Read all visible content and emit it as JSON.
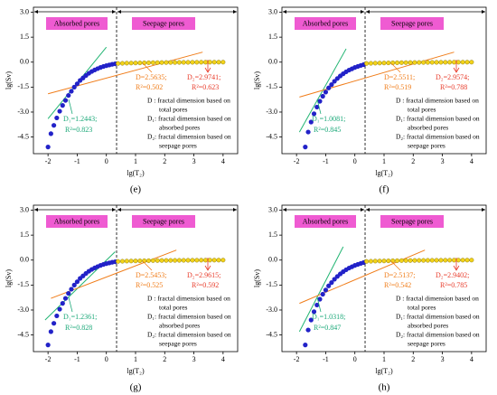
{
  "chart_data": [
    {
      "type": "scatter",
      "label": "(e)",
      "xlabel": "lg(T₂)",
      "ylabel": "lg(Sv)",
      "xlim": [
        -2.5,
        4.5
      ],
      "ylim": [
        -5.5,
        3.3
      ],
      "xticks": [
        -2,
        -1,
        0,
        1,
        2,
        3,
        4
      ],
      "yticks": [
        {
          "value": 3,
          "label": "3.0"
        },
        {
          "value": 1.5,
          "label": "1.5"
        },
        {
          "value": 0,
          "label": "0.0"
        },
        -1.5,
        {
          "value": -3,
          "label": "-3.0"
        },
        -4.5
      ],
      "regions": [
        "Absorbed pores",
        "Seepage pores"
      ],
      "divider": 0.35,
      "series": [
        {
          "color": "#2222c8",
          "x": [
            -2.0,
            -1.9,
            -1.8,
            -1.7,
            -1.6,
            -1.5,
            -1.4,
            -1.3,
            -1.2,
            -1.1,
            -1.0,
            -0.9,
            -0.8,
            -0.7,
            -0.6,
            -0.5,
            -0.4,
            -0.3,
            -0.2,
            -0.1,
            0.0,
            0.1,
            0.2,
            0.3
          ],
          "values": [
            -5.1,
            -4.3,
            -3.8,
            -3.35,
            -2.95,
            -2.6,
            -2.3,
            -2.0,
            -1.75,
            -1.5,
            -1.3,
            -1.1,
            -0.95,
            -0.8,
            -0.67,
            -0.56,
            -0.47,
            -0.39,
            -0.32,
            -0.26,
            -0.21,
            -0.17,
            -0.13,
            -0.1
          ]
        },
        {
          "color": "#f2d21a",
          "x": [
            0.4,
            0.55,
            0.7,
            0.85,
            1.0,
            1.15,
            1.3,
            1.45,
            1.6,
            1.75,
            1.9,
            2.05,
            2.2,
            2.35,
            2.5,
            2.65,
            2.8,
            2.95,
            3.1,
            3.25,
            3.4,
            3.55,
            3.7,
            3.85,
            4.0
          ],
          "values": [
            -0.08,
            -0.07,
            -0.06,
            -0.055,
            -0.05,
            -0.045,
            -0.04,
            -0.035,
            -0.03,
            -0.028,
            -0.025,
            -0.022,
            -0.02,
            -0.018,
            -0.015,
            -0.013,
            -0.011,
            -0.009,
            -0.007,
            -0.005,
            -0.004,
            -0.003,
            -0.002,
            -0.001,
            0
          ]
        }
      ],
      "fits": [
        {
          "color": "#22b573",
          "x": [
            -2.0,
            0.0
          ],
          "values": [
            -3.4,
            0.9
          ]
        },
        {
          "color": "#f07d1a",
          "x": [
            -2.0,
            3.3
          ],
          "values": [
            -1.9,
            0.6
          ]
        }
      ],
      "annotations": [
        "D=2.5635;",
        "R²=0.502",
        "D₂=2.9741;",
        "R²=0.623",
        "D₁=1.2443;",
        "R²=0.823"
      ],
      "definitions": [
        "D : fractal dimension based on",
        "total pores",
        "D₁: fractal dimension based on",
        "absorbed pores",
        "D₂: fractal dimension based on",
        "seepage pores"
      ]
    },
    {
      "type": "scatter",
      "label": "(f)",
      "xlabel": "lg(T₂)",
      "ylabel": "lg(Sv)",
      "xlim": [
        -2.5,
        4.5
      ],
      "ylim": [
        -5.5,
        3.3
      ],
      "xticks": [
        -2,
        -1,
        0,
        1,
        2,
        3,
        4
      ],
      "yticks": [
        {
          "value": 3,
          "label": "3.0"
        },
        {
          "value": 1.5,
          "label": "1.5"
        },
        {
          "value": 0,
          "label": "0.0"
        },
        -1.5,
        {
          "value": -3,
          "label": "-3.0"
        },
        -4.5
      ],
      "regions": [
        "Absorbed pores",
        "Seepage pores"
      ],
      "divider": 0.35,
      "series": [
        {
          "color": "#2222c8",
          "x": [
            -1.7,
            -1.6,
            -1.5,
            -1.4,
            -1.3,
            -1.2,
            -1.1,
            -1.0,
            -0.9,
            -0.8,
            -0.7,
            -0.6,
            -0.5,
            -0.4,
            -0.3,
            -0.2,
            -0.1,
            0.0,
            0.1,
            0.2,
            0.3
          ],
          "values": [
            -5.1,
            -4.2,
            -3.6,
            -3.1,
            -2.7,
            -2.35,
            -2.05,
            -1.8,
            -1.55,
            -1.35,
            -1.15,
            -0.98,
            -0.83,
            -0.7,
            -0.58,
            -0.48,
            -0.4,
            -0.32,
            -0.26,
            -0.2,
            -0.15
          ]
        },
        {
          "color": "#f2d21a",
          "x": [
            0.4,
            0.55,
            0.7,
            0.85,
            1.0,
            1.15,
            1.3,
            1.45,
            1.6,
            1.75,
            1.9,
            2.05,
            2.2,
            2.35,
            2.5,
            2.65,
            2.8,
            2.95,
            3.1,
            3.25,
            3.4,
            3.55,
            3.7,
            3.85,
            4.0
          ],
          "values": [
            -0.08,
            -0.07,
            -0.06,
            -0.055,
            -0.05,
            -0.045,
            -0.04,
            -0.035,
            -0.03,
            -0.028,
            -0.025,
            -0.022,
            -0.02,
            -0.018,
            -0.015,
            -0.013,
            -0.011,
            -0.009,
            -0.007,
            -0.005,
            -0.004,
            -0.003,
            -0.002,
            -0.001,
            0
          ]
        }
      ],
      "fits": [
        {
          "color": "#22b573",
          "x": [
            -1.9,
            -0.3
          ],
          "values": [
            -4.2,
            0.8
          ]
        },
        {
          "color": "#f07d1a",
          "x": [
            -1.9,
            3.4
          ],
          "values": [
            -2.1,
            0.6
          ]
        }
      ],
      "annotations": [
        "D=2.5511;",
        "R²=0.519",
        "D₂=2.9574;",
        "R²=0.788",
        "D₁=1.0081;",
        "R²=0.845"
      ],
      "definitions": [
        "D : fractal dimension based on",
        "total pores",
        "D₁: fractal dimension based on",
        "absorbed pores",
        "D₂: fractal dimension based on",
        "seepage pores"
      ]
    },
    {
      "type": "scatter",
      "label": "(g)",
      "xlabel": "lg(T₂)",
      "ylabel": "lg(Sv)",
      "xlim": [
        -2.5,
        4.5
      ],
      "ylim": [
        -5.5,
        3.3
      ],
      "xticks": [
        -2,
        -1,
        0,
        1,
        2,
        3,
        4
      ],
      "yticks": [
        {
          "value": 3,
          "label": "3.0"
        },
        {
          "value": 1.5,
          "label": "1.5"
        },
        {
          "value": 0,
          "label": "0.0"
        },
        -1.5,
        {
          "value": -3,
          "label": "-3.0"
        },
        -4.5
      ],
      "regions": [
        "Absorbed pores",
        "Seepage pores"
      ],
      "divider": 0.35,
      "series": [
        {
          "color": "#2222c8",
          "x": [
            -2.0,
            -1.9,
            -1.8,
            -1.7,
            -1.6,
            -1.5,
            -1.4,
            -1.3,
            -1.2,
            -1.1,
            -1.0,
            -0.9,
            -0.8,
            -0.7,
            -0.6,
            -0.5,
            -0.4,
            -0.3,
            -0.2,
            -0.1,
            0.0,
            0.1,
            0.2,
            0.3
          ],
          "values": [
            -5.1,
            -4.3,
            -3.8,
            -3.35,
            -2.95,
            -2.6,
            -2.3,
            -2.0,
            -1.75,
            -1.5,
            -1.3,
            -1.1,
            -0.95,
            -0.8,
            -0.67,
            -0.56,
            -0.47,
            -0.39,
            -0.32,
            -0.26,
            -0.21,
            -0.17,
            -0.13,
            -0.1
          ]
        },
        {
          "color": "#f2d21a",
          "x": [
            0.4,
            0.55,
            0.7,
            0.85,
            1.0,
            1.15,
            1.3,
            1.45,
            1.6,
            1.75,
            1.9,
            2.05,
            2.2,
            2.35,
            2.5,
            2.65,
            2.8,
            2.95,
            3.1,
            3.25,
            3.4,
            3.55,
            3.7,
            3.85,
            4.0
          ],
          "values": [
            -0.08,
            -0.07,
            -0.06,
            -0.055,
            -0.05,
            -0.045,
            -0.04,
            -0.035,
            -0.03,
            -0.028,
            -0.025,
            -0.022,
            -0.02,
            -0.018,
            -0.015,
            -0.013,
            -0.011,
            -0.009,
            -0.007,
            -0.005,
            -0.004,
            -0.003,
            -0.002,
            -0.001,
            0
          ]
        }
      ],
      "fits": [
        {
          "color": "#22b573",
          "x": [
            -2.1,
            0.3
          ],
          "values": [
            -3.6,
            0.5
          ]
        },
        {
          "color": "#f07d1a",
          "x": [
            -1.9,
            2.4
          ],
          "values": [
            -2.3,
            0.6
          ]
        }
      ],
      "annotations": [
        "D=2.5453;",
        "R²=0.525",
        "D₂=2.9615;",
        "R²=0.592",
        "D₁=1.2361;",
        "R²=0.828"
      ],
      "definitions": [
        "D : fractal dimension based on",
        "total pores",
        "D₁: fractal dimension based on",
        "absorbed pores",
        "D₂: fractal dimension based on",
        "seepage pores"
      ]
    },
    {
      "type": "scatter",
      "label": "(h)",
      "xlabel": "lg(T₂)",
      "ylabel": "lg(Sv)",
      "xlim": [
        -2.5,
        4.5
      ],
      "ylim": [
        -5.5,
        3.3
      ],
      "xticks": [
        -2,
        -1,
        0,
        1,
        2,
        3,
        4
      ],
      "yticks": [
        {
          "value": 3,
          "label": "3.0"
        },
        {
          "value": 1.5,
          "label": "1.5"
        },
        {
          "value": 0,
          "label": "0.0"
        },
        -1.5,
        {
          "value": -3,
          "label": "-3.0"
        },
        -4.5
      ],
      "regions": [
        "Absorbed pores",
        "Seepage pores"
      ],
      "divider": 0.35,
      "series": [
        {
          "color": "#2222c8",
          "x": [
            -1.7,
            -1.6,
            -1.5,
            -1.4,
            -1.3,
            -1.2,
            -1.1,
            -1.0,
            -0.9,
            -0.8,
            -0.7,
            -0.6,
            -0.5,
            -0.4,
            -0.3,
            -0.2,
            -0.1,
            0.0,
            0.1,
            0.2,
            0.3
          ],
          "values": [
            -5.1,
            -4.2,
            -3.6,
            -3.1,
            -2.7,
            -2.35,
            -2.05,
            -1.8,
            -1.55,
            -1.35,
            -1.15,
            -0.98,
            -0.83,
            -0.7,
            -0.58,
            -0.48,
            -0.4,
            -0.32,
            -0.26,
            -0.2,
            -0.15
          ]
        },
        {
          "color": "#f2d21a",
          "x": [
            0.4,
            0.55,
            0.7,
            0.85,
            1.0,
            1.15,
            1.3,
            1.45,
            1.6,
            1.75,
            1.9,
            2.05,
            2.2,
            2.35,
            2.5,
            2.65,
            2.8,
            2.95,
            3.1,
            3.25,
            3.4,
            3.55,
            3.7,
            3.85,
            4.0
          ],
          "values": [
            -0.08,
            -0.07,
            -0.06,
            -0.055,
            -0.05,
            -0.045,
            -0.04,
            -0.035,
            -0.03,
            -0.028,
            -0.025,
            -0.022,
            -0.02,
            -0.018,
            -0.015,
            -0.013,
            -0.011,
            -0.009,
            -0.007,
            -0.005,
            -0.004,
            -0.003,
            -0.002,
            -0.001,
            0
          ]
        }
      ],
      "fits": [
        {
          "color": "#22b573",
          "x": [
            -1.9,
            -0.4
          ],
          "values": [
            -4.3,
            0.8
          ]
        },
        {
          "color": "#f07d1a",
          "x": [
            -1.9,
            2.4
          ],
          "values": [
            -2.6,
            0.6
          ]
        }
      ],
      "annotations": [
        "D=2.5137;",
        "R²=0.542",
        "D₂=2.9402;",
        "R²=0.785",
        "D₁=1.0318;",
        "R²=0.847"
      ],
      "definitions": [
        "D : fractal dimension based on",
        "total pores",
        "D₁: fractal dimension based on",
        "absorbed pores",
        "D₂: fractal dimension based on",
        "seepage pores"
      ]
    }
  ]
}
